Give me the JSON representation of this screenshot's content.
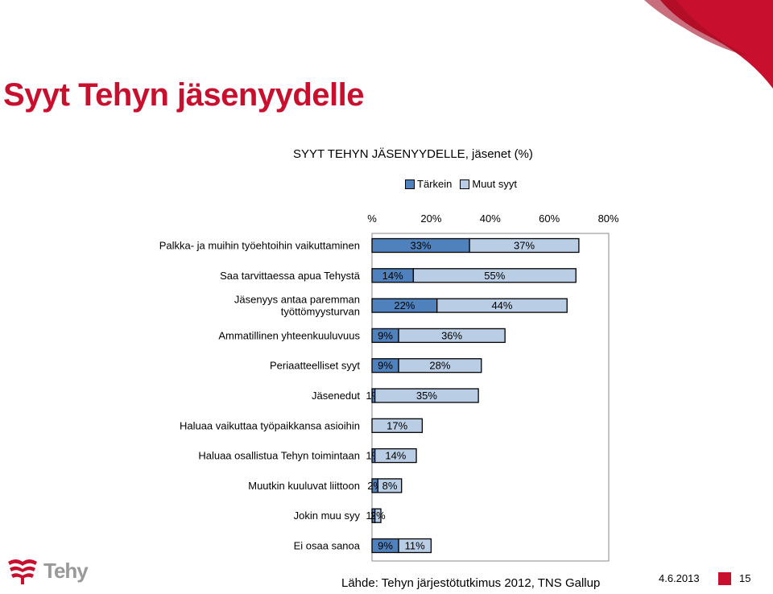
{
  "slide": {
    "title": "Syyt Tehyn jäsenyydelle",
    "source": "Lähde: Tehyn järjestötutkimus 2012, TNS Gallup",
    "date": "4.6.2013",
    "page_number": "15",
    "logo_text": "Tehy",
    "accent_color": "#c8102e"
  },
  "chart_data": {
    "type": "bar",
    "orientation": "horizontal",
    "stacked": true,
    "title": "SYYT TEHYN JÄSENYYDELLE, jäsenet (%)",
    "legend_position": "top",
    "xlim": [
      0,
      80
    ],
    "x_ticks": [
      "%",
      "20%",
      "40%",
      "60%",
      "80%"
    ],
    "categories": [
      "Palkka- ja muihin työehtoihin vaikuttaminen",
      "Saa tarvittaessa apua Tehystä",
      "Jäsenyys antaa paremman työttömyysturvan",
      "Ammatillinen yhteenkuuluvuus",
      "Periaatteelliset syyt",
      "Jäsenedut",
      "Haluaa vaikuttaa työpaikkansa asioihin",
      "Haluaa osallistua Tehyn toimintaan",
      "Muutkin kuuluvat liittoon",
      "Jokin muu syy",
      "Ei osaa sanoa"
    ],
    "category_lines": [
      [
        "Palkka- ja muihin työehtoihin vaikuttaminen"
      ],
      [
        "Saa tarvittaessa apua Tehystä"
      ],
      [
        "Jäsenyys antaa paremman",
        "työttömyysturvan"
      ],
      [
        "Ammatillinen yhteenkuuluvuus"
      ],
      [
        "Periaatteelliset syyt"
      ],
      [
        "Jäsenedut"
      ],
      [
        "Haluaa vaikuttaa työpaikkansa asioihin"
      ],
      [
        "Haluaa osallistua Tehyn toimintaan"
      ],
      [
        "Muutkin kuuluvat liittoon"
      ],
      [
        "Jokin muu syy"
      ],
      [
        "Ei osaa sanoa"
      ]
    ],
    "series": [
      {
        "name": "Tärkein",
        "color": "#4f81bd",
        "values": [
          33,
          14,
          22,
          9,
          9,
          1,
          0,
          1,
          2,
          1,
          9
        ],
        "labels": [
          "33%",
          "14%",
          "22%",
          "9%",
          "9%",
          "1%",
          "",
          "1%",
          "2%",
          "1%",
          "9%"
        ]
      },
      {
        "name": "Muut syyt",
        "color": "#b9cde5",
        "values": [
          37,
          55,
          44,
          36,
          28,
          35,
          17,
          14,
          8,
          2,
          11
        ],
        "labels": [
          "37%",
          "55%",
          "44%",
          "36%",
          "28%",
          "35%",
          "17%",
          "14%",
          "8%",
          "2%",
          "11%"
        ]
      }
    ]
  }
}
